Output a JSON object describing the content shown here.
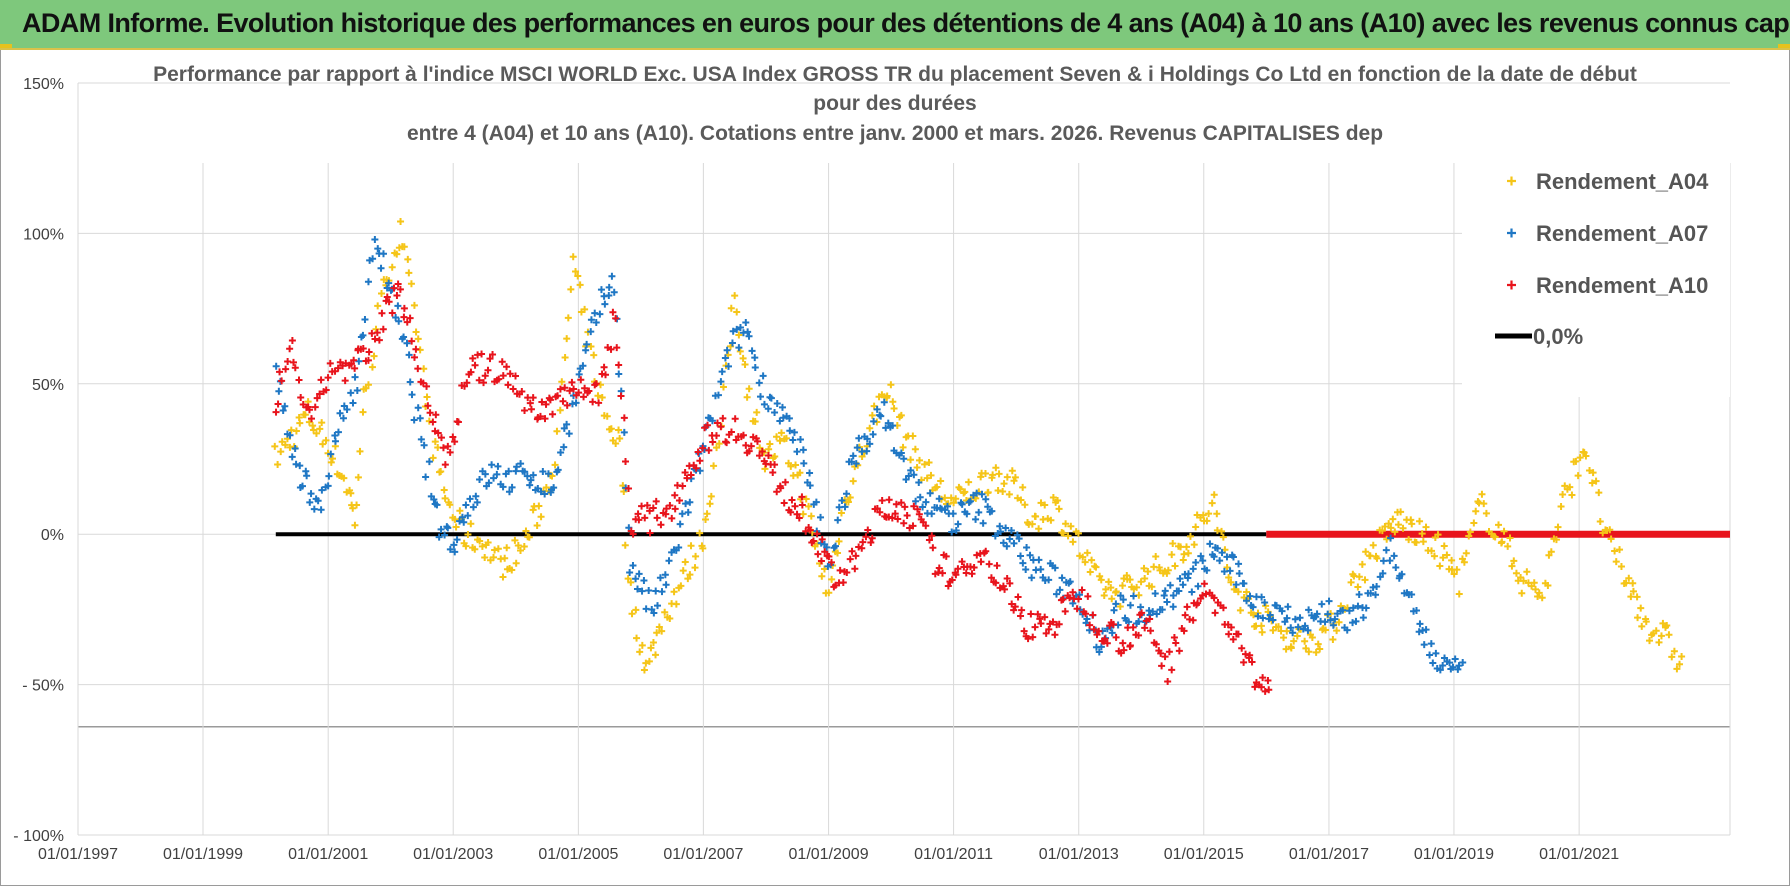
{
  "banner": {
    "title": "ADAM Informe. Evolution historique des performances en euros pour des détentions de 4 ans (A04) à 10 ans (A10) avec les revenus connus capitalisés"
  },
  "chart_data": {
    "type": "scatter",
    "title_lines": [
      "Performance par rapport à l'indice MSCI WORLD Exc. USA Index GROSS TR  du placement Seven & i Holdings Co Ltd en fonction de la date de début",
      "pour des durées",
      "entre 4 (A04) et 10 ans (A10). Cotations entre janv. 2000 et mars. 2026. Revenus CAPITALISES dep"
    ],
    "ylim": [
      -100,
      150
    ],
    "yticks": [
      150,
      100,
      50,
      0,
      -50,
      -100
    ],
    "ytick_labels": [
      "150%",
      "100%",
      "50%",
      "0%",
      "- 50%",
      "- 100%"
    ],
    "xlim": [
      "1997-01-01",
      "2023-06-01"
    ],
    "xtick_labels": [
      "01/01/1997",
      "01/01/1999",
      "01/01/2001",
      "01/01/2003",
      "01/01/2005",
      "01/01/2007",
      "01/01/2009",
      "01/01/2011",
      "01/01/2013",
      "01/01/2015",
      "01/01/2017",
      "01/01/2019",
      "01/01/2021"
    ],
    "grid": true,
    "legend_position": "top-right",
    "series": [
      {
        "name": "Rendement_A04",
        "color": "#f5c518",
        "marker": "+",
        "points": [
          [
            "2000-03-01",
            25
          ],
          [
            "2000-09-01",
            40
          ],
          [
            "2001-01-01",
            30
          ],
          [
            "2001-05-01",
            15
          ],
          [
            "2001-06-01",
            4
          ],
          [
            "2001-08-01",
            45
          ],
          [
            "2001-12-01",
            85
          ],
          [
            "2002-03-01",
            100
          ],
          [
            "2002-06-01",
            70
          ],
          [
            "2002-09-01",
            30
          ],
          [
            "2002-12-01",
            10
          ],
          [
            "2003-03-01",
            0
          ],
          [
            "2003-07-01",
            -3
          ],
          [
            "2003-10-01",
            -10
          ],
          [
            "2004-02-01",
            -5
          ],
          [
            "2004-06-01",
            10
          ],
          [
            "2004-09-01",
            30
          ],
          [
            "2004-12-01",
            90
          ],
          [
            "2005-02-01",
            70
          ],
          [
            "2005-06-01",
            40
          ],
          [
            "2005-09-01",
            30
          ],
          [
            "2005-11-01",
            -20
          ],
          [
            "2006-02-01",
            -45
          ],
          [
            "2006-06-01",
            -25
          ],
          [
            "2006-09-01",
            -15
          ],
          [
            "2007-01-01",
            0
          ],
          [
            "2007-04-01",
            30
          ],
          [
            "2007-07-01",
            80
          ],
          [
            "2007-10-01",
            45
          ],
          [
            "2008-01-01",
            25
          ],
          [
            "2008-04-01",
            30
          ],
          [
            "2008-07-01",
            20
          ],
          [
            "2008-10-01",
            0
          ],
          [
            "2009-01-01",
            -20
          ],
          [
            "2009-04-01",
            10
          ],
          [
            "2009-08-01",
            30
          ],
          [
            "2009-12-01",
            50
          ],
          [
            "2010-03-01",
            35
          ],
          [
            "2010-06-01",
            25
          ],
          [
            "2010-10-01",
            15
          ],
          [
            "2011-01-01",
            10
          ],
          [
            "2011-05-01",
            15
          ],
          [
            "2011-09-01",
            20
          ],
          [
            "2012-01-01",
            15
          ],
          [
            "2012-04-01",
            5
          ],
          [
            "2012-08-01",
            10
          ],
          [
            "2012-12-01",
            0
          ],
          [
            "2013-04-01",
            -15
          ],
          [
            "2013-08-01",
            -20
          ],
          [
            "2014-01-01",
            -15
          ],
          [
            "2014-06-01",
            -10
          ],
          [
            "2014-11-01",
            0
          ],
          [
            "2015-03-01",
            10
          ],
          [
            "2015-06-01",
            -15
          ],
          [
            "2015-10-01",
            -25
          ],
          [
            "2016-02-01",
            -30
          ],
          [
            "2016-06-01",
            -35
          ],
          [
            "2016-10-01",
            -35
          ],
          [
            "2017-02-01",
            -30
          ],
          [
            "2017-06-01",
            -15
          ],
          [
            "2017-10-01",
            -5
          ],
          [
            "2018-02-01",
            5
          ],
          [
            "2018-06-01",
            0
          ],
          [
            "2018-10-01",
            -5
          ],
          [
            "2019-02-01",
            -15
          ],
          [
            "2019-06-01",
            10
          ],
          [
            "2019-10-01",
            0
          ],
          [
            "2020-02-01",
            -15
          ],
          [
            "2020-06-01",
            -20
          ],
          [
            "2020-10-01",
            10
          ],
          [
            "2021-02-01",
            30
          ],
          [
            "2021-06-01",
            0
          ],
          [
            "2021-10-01",
            -15
          ],
          [
            "2022-02-01",
            -30
          ],
          [
            "2022-06-01",
            -35
          ],
          [
            "2022-09-01",
            -45
          ]
        ]
      },
      {
        "name": "Rendement_A07",
        "color": "#1f77c4",
        "marker": "+",
        "points": [
          [
            "2000-03-01",
            55
          ],
          [
            "2000-07-01",
            20
          ],
          [
            "2000-12-01",
            10
          ],
          [
            "2001-03-01",
            35
          ],
          [
            "2001-07-01",
            55
          ],
          [
            "2001-10-01",
            100
          ],
          [
            "2002-01-01",
            80
          ],
          [
            "2002-04-01",
            60
          ],
          [
            "2002-07-01",
            30
          ],
          [
            "2002-10-01",
            5
          ],
          [
            "2003-01-01",
            -3
          ],
          [
            "2003-04-01",
            10
          ],
          [
            "2003-08-01",
            20
          ],
          [
            "2003-12-01",
            18
          ],
          [
            "2004-04-01",
            20
          ],
          [
            "2004-08-01",
            15
          ],
          [
            "2005-01-01",
            50
          ],
          [
            "2005-05-01",
            75
          ],
          [
            "2005-08-01",
            85
          ],
          [
            "2005-11-01",
            -10
          ],
          [
            "2006-03-01",
            -25
          ],
          [
            "2006-06-01",
            -15
          ],
          [
            "2006-10-01",
            10
          ],
          [
            "2007-02-01",
            35
          ],
          [
            "2007-06-01",
            60
          ],
          [
            "2007-09-01",
            70
          ],
          [
            "2007-12-01",
            50
          ],
          [
            "2008-04-01",
            40
          ],
          [
            "2008-08-01",
            25
          ],
          [
            "2009-01-01",
            -10
          ],
          [
            "2009-05-01",
            20
          ],
          [
            "2009-09-01",
            35
          ],
          [
            "2009-12-01",
            40
          ],
          [
            "2010-04-01",
            20
          ],
          [
            "2010-08-01",
            10
          ],
          [
            "2011-01-01",
            5
          ],
          [
            "2011-06-01",
            10
          ],
          [
            "2011-11-01",
            0
          ],
          [
            "2012-04-01",
            -10
          ],
          [
            "2012-08-01",
            -15
          ],
          [
            "2013-01-01",
            -20
          ],
          [
            "2013-05-01",
            -35
          ],
          [
            "2013-09-01",
            -25
          ],
          [
            "2014-02-01",
            -25
          ],
          [
            "2014-07-01",
            -20
          ],
          [
            "2014-11-01",
            -15
          ],
          [
            "2015-03-01",
            -5
          ],
          [
            "2015-08-01",
            -15
          ],
          [
            "2015-12-01",
            -25
          ],
          [
            "2016-04-01",
            -25
          ],
          [
            "2016-08-01",
            -30
          ],
          [
            "2017-01-01",
            -25
          ],
          [
            "2017-05-01",
            -30
          ],
          [
            "2017-09-01",
            -20
          ],
          [
            "2018-01-01",
            -5
          ],
          [
            "2018-05-01",
            -25
          ],
          [
            "2018-09-01",
            -40
          ],
          [
            "2018-12-01",
            -45
          ],
          [
            "2019-03-01",
            -48
          ]
        ]
      },
      {
        "name": "Rendement_A10",
        "color": "#e8141c",
        "marker": "+",
        "points": [
          [
            "2000-03-01",
            45
          ],
          [
            "2000-06-01",
            60
          ],
          [
            "2000-10-01",
            35
          ],
          [
            "2001-01-01",
            55
          ],
          [
            "2001-05-01",
            55
          ],
          [
            "2001-09-01",
            60
          ],
          [
            "2001-12-01",
            75
          ],
          [
            "2002-03-01",
            80
          ],
          [
            "2002-06-01",
            60
          ],
          [
            "2002-09-01",
            40
          ],
          [
            "2002-12-01",
            25
          ],
          [
            "2003-04-01",
            55
          ],
          [
            "2003-09-01",
            55
          ],
          [
            "2004-01-01",
            50
          ],
          [
            "2004-05-01",
            40
          ],
          [
            "2004-09-01",
            45
          ],
          [
            "2005-01-01",
            50
          ],
          [
            "2005-05-01",
            45
          ],
          [
            "2005-08-01",
            75
          ],
          [
            "2005-11-01",
            5
          ],
          [
            "2006-03-01",
            5
          ],
          [
            "2006-07-01",
            10
          ],
          [
            "2006-11-01",
            25
          ],
          [
            "2007-03-01",
            35
          ],
          [
            "2007-07-01",
            35
          ],
          [
            "2007-11-01",
            30
          ],
          [
            "2008-04-01",
            15
          ],
          [
            "2008-09-01",
            5
          ],
          [
            "2009-02-01",
            -15
          ],
          [
            "2009-06-01",
            -10
          ],
          [
            "2009-10-01",
            5
          ],
          [
            "2010-02-01",
            10
          ],
          [
            "2010-06-01",
            5
          ],
          [
            "2010-10-01",
            -10
          ],
          [
            "2011-02-01",
            -15
          ],
          [
            "2011-06-01",
            -5
          ],
          [
            "2011-10-01",
            -15
          ],
          [
            "2012-03-01",
            -30
          ],
          [
            "2012-08-01",
            -30
          ],
          [
            "2013-01-01",
            -20
          ],
          [
            "2013-05-01",
            -30
          ],
          [
            "2013-09-01",
            -35
          ],
          [
            "2014-02-01",
            -30
          ],
          [
            "2014-06-01",
            -45
          ],
          [
            "2014-10-01",
            -25
          ],
          [
            "2015-02-01",
            -20
          ],
          [
            "2015-06-01",
            -30
          ],
          [
            "2015-10-01",
            -45
          ],
          [
            "2016-02-01",
            -55
          ]
        ]
      },
      {
        "name": "0,0%",
        "color": "#000000",
        "type": "line",
        "x": [
          "2000-03-01",
          "2016-01-01"
        ],
        "y": [
          0,
          0
        ]
      }
    ],
    "red_zero_band": {
      "color": "#e8141c",
      "x": [
        "2016-01-01",
        "2023-06-01"
      ],
      "y": 0
    }
  }
}
